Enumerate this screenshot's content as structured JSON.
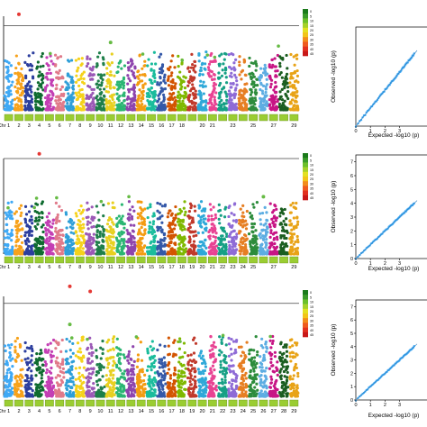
{
  "chart_data": [
    {
      "type": "scatter",
      "kind": "manhattan",
      "chromosomes": [
        "1",
        "2",
        "3",
        "4",
        "5",
        "6",
        "7",
        "8",
        "9",
        "10",
        "11",
        "12",
        "13",
        "14",
        "15",
        "16",
        "17",
        "18",
        "19",
        "20",
        "21",
        "22",
        "23",
        "24",
        "25",
        "26",
        "27",
        "28",
        "29"
      ],
      "tick_labels": [
        "Chr",
        "1",
        "2",
        "3",
        "4",
        "5",
        "6",
        "7",
        "8",
        "9",
        "10",
        "11",
        "12",
        "13",
        "14",
        "15",
        "16",
        "17",
        "18",
        "20",
        "21",
        "23",
        "25",
        "27",
        "29"
      ],
      "series_colors": [
        "#3fa9f5",
        "#f7a21b",
        "#2c3e9e",
        "#0e6b2f",
        "#c33fb4",
        "#e07a8a",
        "#2f9fd8",
        "#f5d21b",
        "#9b59b6",
        "#1e7f4a",
        "#e8d020",
        "#2bb673",
        "#8e44ad",
        "#f39c12",
        "#1abc9c",
        "#3458a8",
        "#d35400",
        "#7fb800",
        "#c0392b",
        "#2ea8d8",
        "#e84393",
        "#16a085",
        "#8e6bd6",
        "#e67e22",
        "#2d8c3c",
        "#5dade2",
        "#c71585",
        "#1b5e20",
        "#e8a317"
      ],
      "threshold": 0.9,
      "peak_level": 0.62,
      "highlights": [
        {
          "chr": 2,
          "level": 1.02,
          "color": "#e53935"
        },
        {
          "chr": 11,
          "level": 0.72,
          "color": "#66bb44"
        }
      ],
      "legend_scale": [
        "0",
        "5",
        "10",
        "15",
        "20",
        "25",
        "30",
        "35",
        "40",
        "45"
      ]
    },
    {
      "type": "scatter",
      "kind": "qq",
      "ylabel": "Observed  -log10 (p)",
      "xlabel": "Expected  -log10 (p)",
      "x_ticks": [
        "0",
        "1",
        "2",
        "3"
      ],
      "y_ticks": [],
      "xlim": [
        0,
        4.2
      ],
      "ylim": [
        0,
        5.5
      ]
    },
    {
      "type": "scatter",
      "kind": "manhattan",
      "chromosomes": [
        "1",
        "2",
        "3",
        "4",
        "5",
        "6",
        "7",
        "8",
        "9",
        "10",
        "11",
        "12",
        "13",
        "14",
        "15",
        "16",
        "17",
        "18",
        "19",
        "20",
        "21",
        "22",
        "23",
        "24",
        "25",
        "26",
        "27",
        "28",
        "29"
      ],
      "tick_labels": [
        "Chr",
        "1",
        "2",
        "3",
        "4",
        "5",
        "6",
        "7",
        "8",
        "9",
        "10",
        "11",
        "12",
        "13",
        "14",
        "15",
        "16",
        "17",
        "18",
        "19",
        "20",
        "21",
        "22",
        "23",
        "24",
        "25",
        "27",
        "29"
      ],
      "series_colors": [
        "#3fa9f5",
        "#f7a21b",
        "#2c3e9e",
        "#0e6b2f",
        "#c33fb4",
        "#e07a8a",
        "#2f9fd8",
        "#f5d21b",
        "#9b59b6",
        "#1e7f4a",
        "#e8d020",
        "#2bb673",
        "#8e44ad",
        "#f39c12",
        "#1abc9c",
        "#3458a8",
        "#d35400",
        "#7fb800",
        "#c0392b",
        "#2ea8d8",
        "#e84393",
        "#16a085",
        "#8e6bd6",
        "#e67e22",
        "#2d8c3c",
        "#5dade2",
        "#c71585",
        "#1b5e20",
        "#e8a317"
      ],
      "threshold": 1.0,
      "peak_level": 0.55,
      "highlights": [
        {
          "chr": 4,
          "level": 1.05,
          "color": "#e53935"
        },
        {
          "chr": 26,
          "level": 0.6,
          "color": "#66bb44"
        }
      ],
      "legend_scale": [
        "0",
        "5",
        "10",
        "15",
        "20",
        "25",
        "30",
        "35",
        "40",
        "45"
      ]
    },
    {
      "type": "scatter",
      "kind": "qq",
      "ylabel": "Observed  -log10 (p)",
      "xlabel": "Expected  -log10 (p)",
      "x_ticks": [
        "0",
        "1",
        "2",
        "3"
      ],
      "y_ticks": [
        "0",
        "1",
        "2",
        "3",
        "4",
        "5",
        "6",
        "7"
      ],
      "xlim": [
        0,
        4.2
      ],
      "ylim": [
        0,
        7.5
      ]
    },
    {
      "type": "scatter",
      "kind": "manhattan",
      "chromosomes": [
        "1",
        "2",
        "3",
        "4",
        "5",
        "6",
        "7",
        "8",
        "9",
        "10",
        "11",
        "12",
        "13",
        "14",
        "15",
        "16",
        "17",
        "18",
        "19",
        "20",
        "21",
        "22",
        "23",
        "24",
        "25",
        "26",
        "27",
        "28",
        "29"
      ],
      "tick_labels": [
        "Chr",
        "1",
        "2",
        "3",
        "4",
        "5",
        "6",
        "7",
        "8",
        "9",
        "10",
        "11",
        "12",
        "13",
        "14",
        "15",
        "16",
        "17",
        "18",
        "19",
        "20",
        "21",
        "22",
        "23",
        "24",
        "25",
        "26",
        "27",
        "28",
        "29"
      ],
      "series_colors": [
        "#3fa9f5",
        "#f7a21b",
        "#2c3e9e",
        "#0e6b2f",
        "#c33fb4",
        "#e07a8a",
        "#2f9fd8",
        "#f5d21b",
        "#9b59b6",
        "#1e7f4a",
        "#e8d020",
        "#2bb673",
        "#8e44ad",
        "#f39c12",
        "#1abc9c",
        "#3458a8",
        "#d35400",
        "#7fb800",
        "#c0392b",
        "#2ea8d8",
        "#e84393",
        "#16a085",
        "#8e6bd6",
        "#e67e22",
        "#2d8c3c",
        "#5dade2",
        "#c71585",
        "#1b5e20",
        "#e8a317"
      ],
      "threshold": 0.93,
      "peak_level": 0.6,
      "highlights": [
        {
          "chr": 7,
          "level": 1.1,
          "color": "#e53935"
        },
        {
          "chr": 9,
          "level": 1.05,
          "color": "#e53935"
        },
        {
          "chr": 7,
          "level": 0.72,
          "color": "#66bb44"
        }
      ],
      "legend_scale": [
        "0",
        "5",
        "10",
        "15",
        "20",
        "25",
        "30",
        "35",
        "40",
        "45"
      ]
    },
    {
      "type": "scatter",
      "kind": "qq",
      "ylabel": "Observed  -log10 (p)",
      "xlabel": "Expected  -log10 (p)",
      "x_ticks": [
        "0",
        "1",
        "2",
        "3"
      ],
      "y_ticks": [
        "0",
        "1",
        "2",
        "3",
        "4",
        "5",
        "6",
        "7"
      ],
      "xlim": [
        0,
        4.2
      ],
      "ylim": [
        0,
        7.5
      ]
    }
  ]
}
